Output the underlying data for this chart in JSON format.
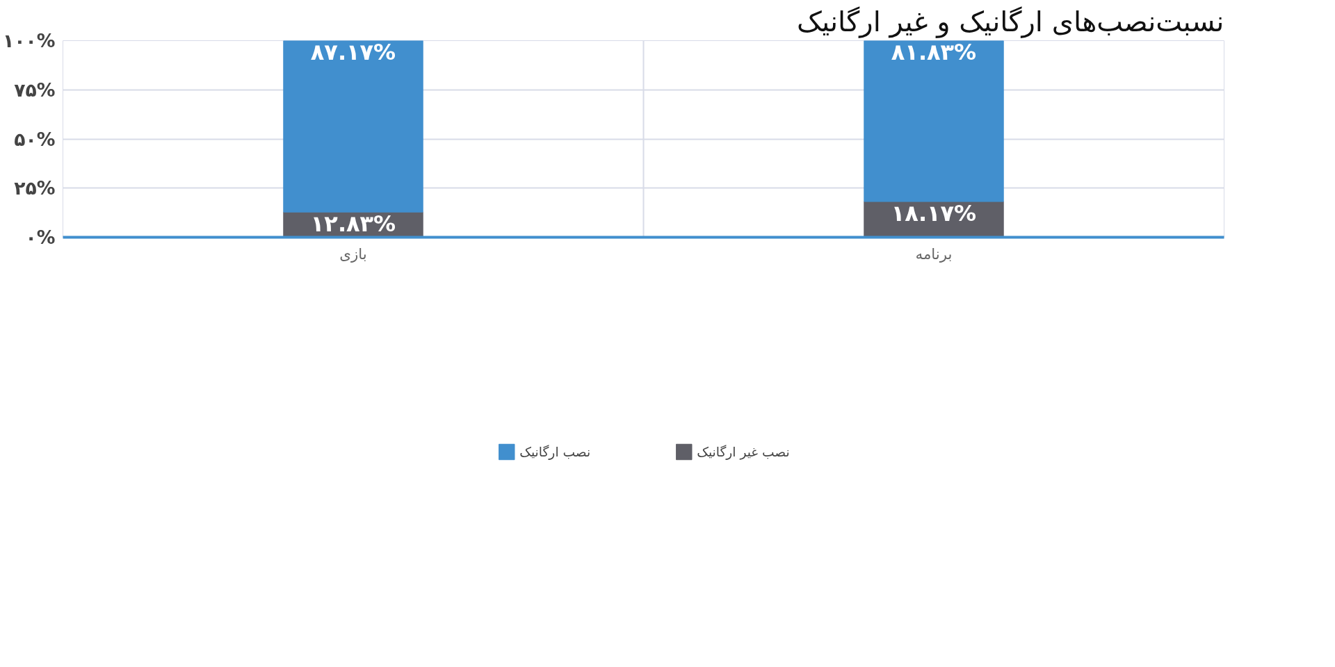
{
  "chart_data": {
    "type": "bar",
    "stacked": true,
    "title": "نسبت‌نصب‌های ارگانیک و غیر ارگانیک",
    "categories": [
      "بازی",
      "برنامه"
    ],
    "series": [
      {
        "name": "نصب غیر ارگانیک",
        "color": "#5f5f67",
        "values": [
          12.83,
          18.17
        ],
        "value_labels": [
          "۱۲.۸۳%",
          "۱۸.۱۷%"
        ]
      },
      {
        "name": "نصب ارگانیک",
        "color": "#418fce",
        "values": [
          87.17,
          81.83
        ],
        "value_labels": [
          "۸۷.۱۷%",
          "۸۱.۸۳%"
        ]
      }
    ],
    "ylim": [
      0,
      100
    ],
    "yticks": [
      {
        "value": 0,
        "label": "۰%"
      },
      {
        "value": 25,
        "label": "۲۵%"
      },
      {
        "value": 50,
        "label": "۵۰%"
      },
      {
        "value": 75,
        "label": "۷۵%"
      },
      {
        "value": 100,
        "label": "۱۰۰%"
      }
    ],
    "grid": true,
    "legend": "bottom"
  }
}
